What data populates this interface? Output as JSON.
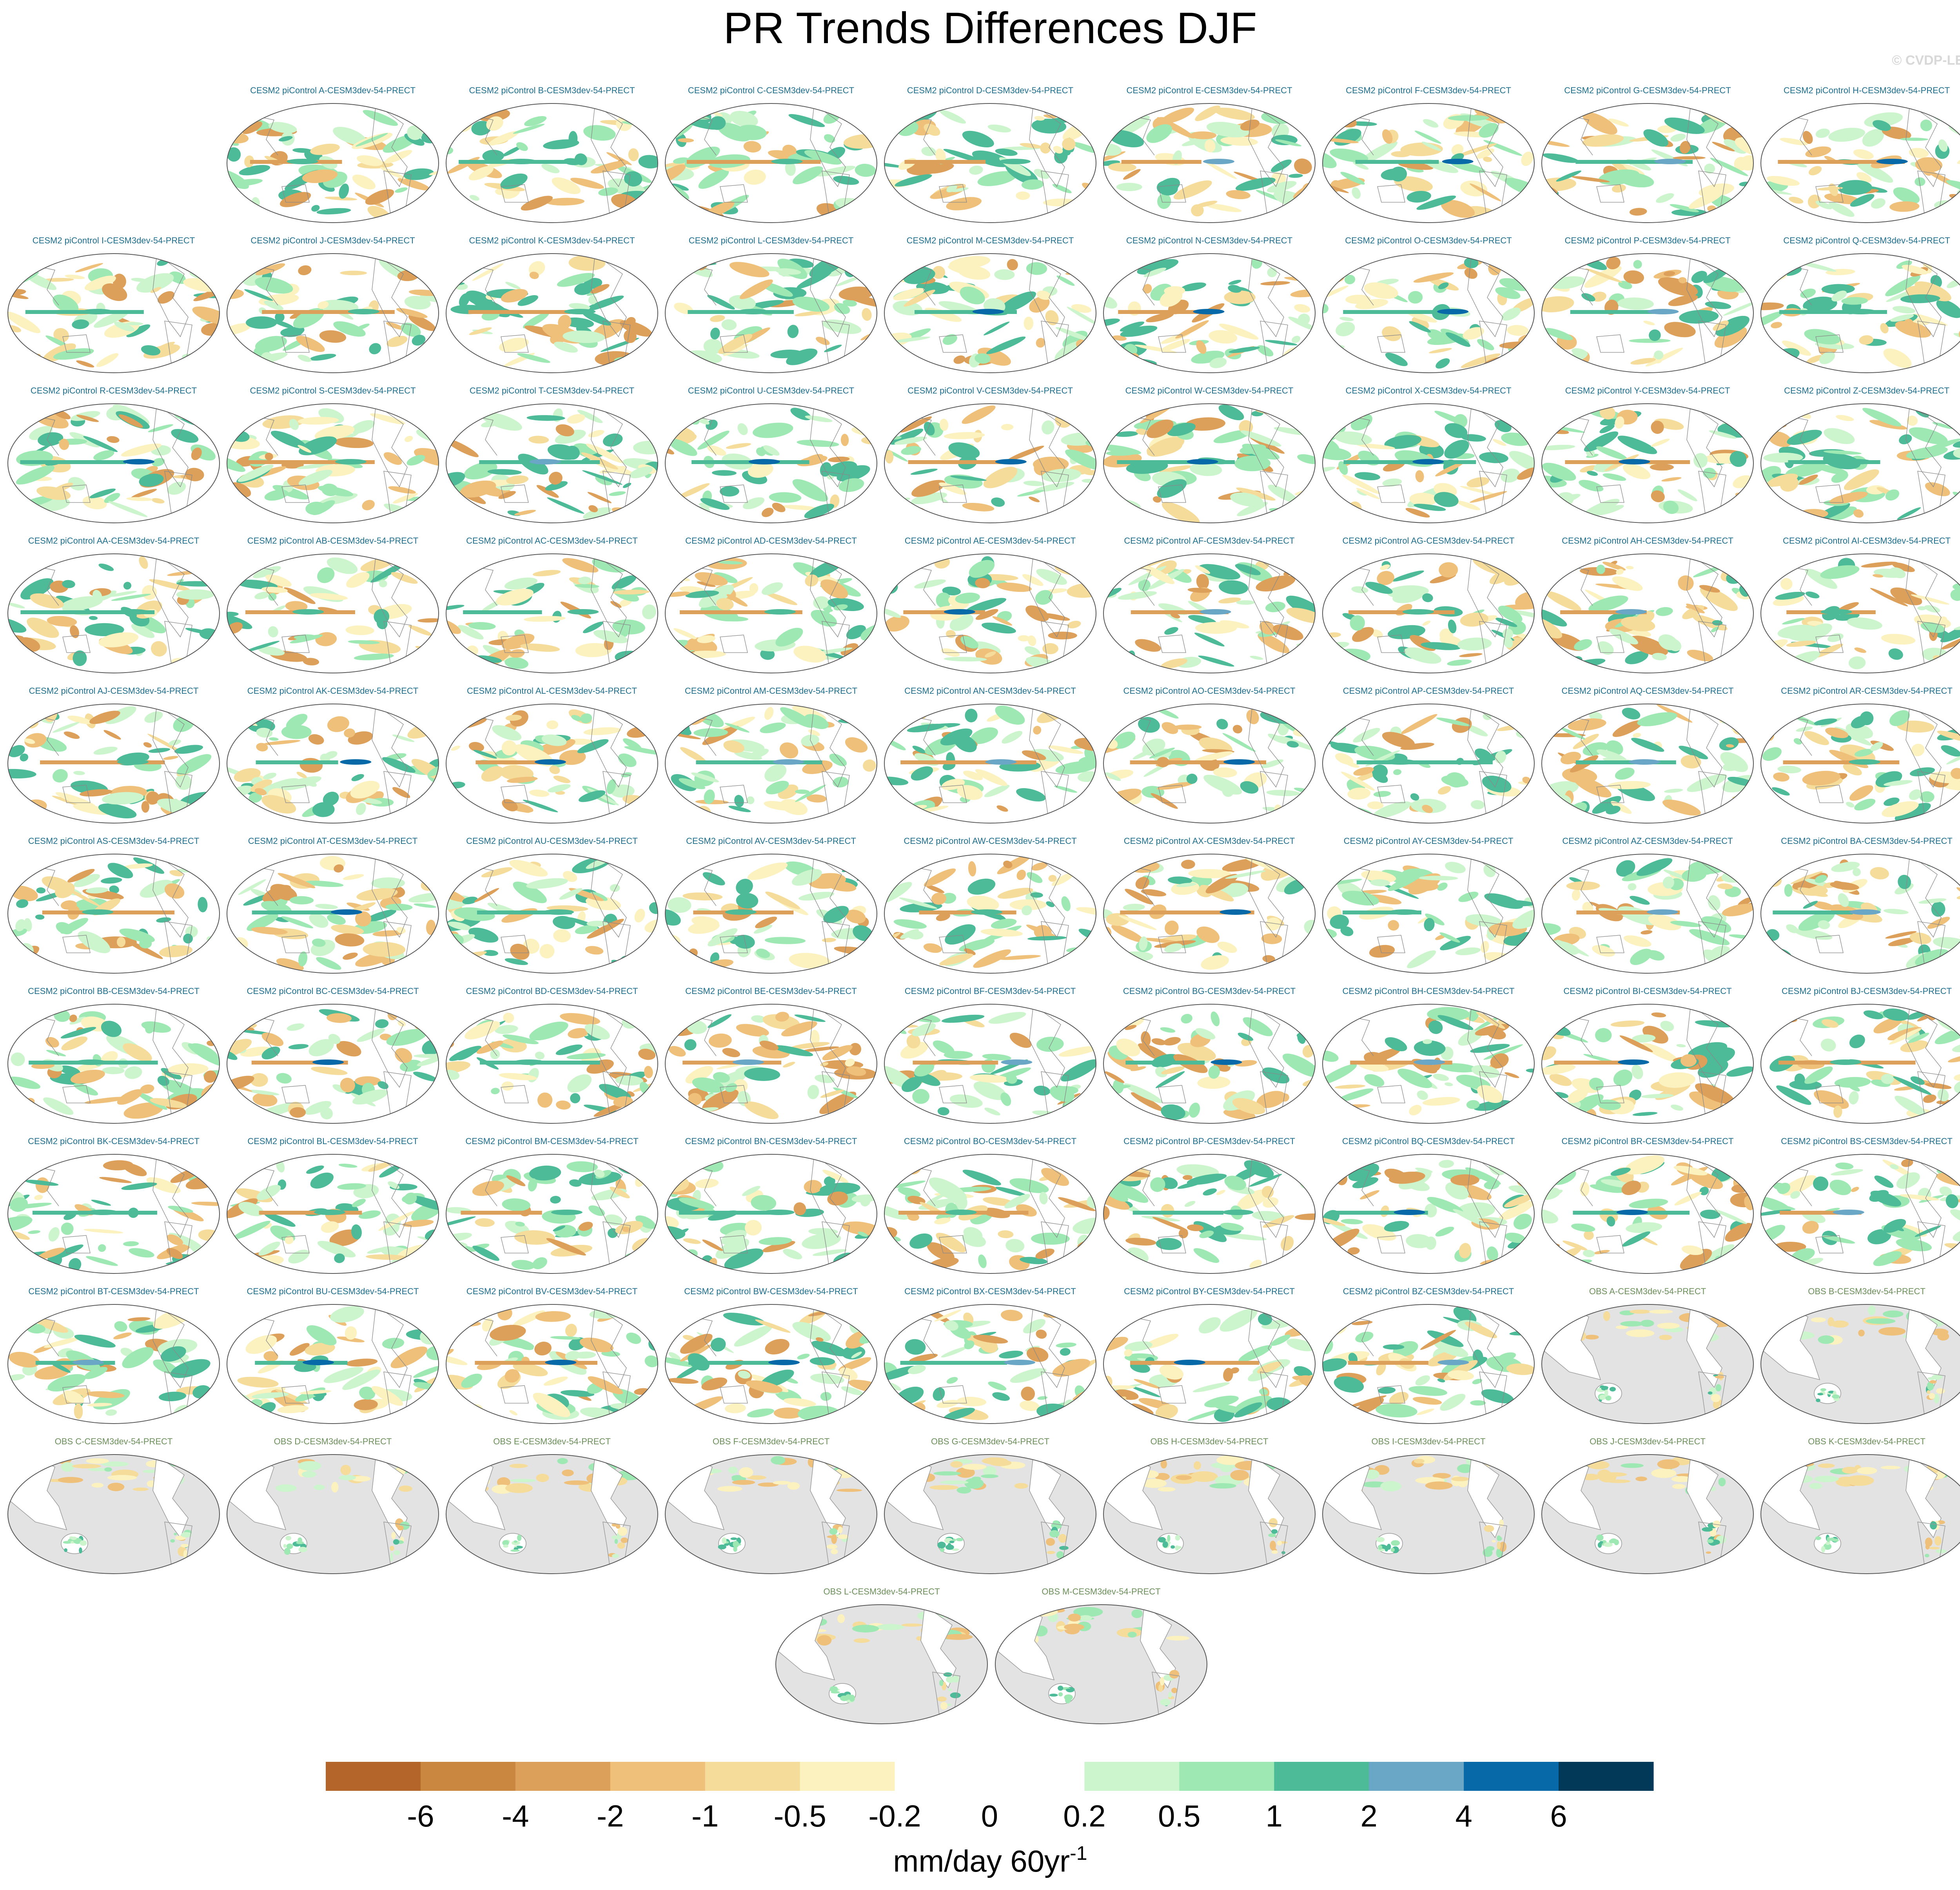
{
  "title": "PR Trends Differences DJF",
  "watermark": "© CVDP-LE",
  "panels": [
    "CESM2 piControl A-CESM3dev-54-PRECT",
    "CESM2 piControl B-CESM3dev-54-PRECT",
    "CESM2 piControl C-CESM3dev-54-PRECT",
    "CESM2 piControl D-CESM3dev-54-PRECT",
    "CESM2 piControl E-CESM3dev-54-PRECT",
    "CESM2 piControl F-CESM3dev-54-PRECT",
    "CESM2 piControl G-CESM3dev-54-PRECT",
    "CESM2 piControl H-CESM3dev-54-PRECT",
    "CESM2 piControl I-CESM3dev-54-PRECT",
    "CESM2 piControl J-CESM3dev-54-PRECT",
    "CESM2 piControl K-CESM3dev-54-PRECT",
    "CESM2 piControl L-CESM3dev-54-PRECT",
    "CESM2 piControl M-CESM3dev-54-PRECT",
    "CESM2 piControl N-CESM3dev-54-PRECT",
    "CESM2 piControl O-CESM3dev-54-PRECT",
    "CESM2 piControl P-CESM3dev-54-PRECT",
    "CESM2 piControl Q-CESM3dev-54-PRECT",
    "CESM2 piControl R-CESM3dev-54-PRECT",
    "CESM2 piControl S-CESM3dev-54-PRECT",
    "CESM2 piControl T-CESM3dev-54-PRECT",
    "CESM2 piControl U-CESM3dev-54-PRECT",
    "CESM2 piControl V-CESM3dev-54-PRECT",
    "CESM2 piControl W-CESM3dev-54-PRECT",
    "CESM2 piControl X-CESM3dev-54-PRECT",
    "CESM2 piControl Y-CESM3dev-54-PRECT",
    "CESM2 piControl Z-CESM3dev-54-PRECT",
    "CESM2 piControl AA-CESM3dev-54-PRECT",
    "CESM2 piControl AB-CESM3dev-54-PRECT",
    "CESM2 piControl AC-CESM3dev-54-PRECT",
    "CESM2 piControl AD-CESM3dev-54-PRECT",
    "CESM2 piControl AE-CESM3dev-54-PRECT",
    "CESM2 piControl AF-CESM3dev-54-PRECT",
    "CESM2 piControl AG-CESM3dev-54-PRECT",
    "CESM2 piControl AH-CESM3dev-54-PRECT",
    "CESM2 piControl AI-CESM3dev-54-PRECT",
    "CESM2 piControl AJ-CESM3dev-54-PRECT",
    "CESM2 piControl AK-CESM3dev-54-PRECT",
    "CESM2 piControl AL-CESM3dev-54-PRECT",
    "CESM2 piControl AM-CESM3dev-54-PRECT",
    "CESM2 piControl AN-CESM3dev-54-PRECT",
    "CESM2 piControl AO-CESM3dev-54-PRECT",
    "CESM2 piControl AP-CESM3dev-54-PRECT",
    "CESM2 piControl AQ-CESM3dev-54-PRECT",
    "CESM2 piControl AR-CESM3dev-54-PRECT",
    "CESM2 piControl AS-CESM3dev-54-PRECT",
    "CESM2 piControl AT-CESM3dev-54-PRECT",
    "CESM2 piControl AU-CESM3dev-54-PRECT",
    "CESM2 piControl AV-CESM3dev-54-PRECT",
    "CESM2 piControl AW-CESM3dev-54-PRECT",
    "CESM2 piControl AX-CESM3dev-54-PRECT",
    "CESM2 piControl AY-CESM3dev-54-PRECT",
    "CESM2 piControl AZ-CESM3dev-54-PRECT",
    "CESM2 piControl BA-CESM3dev-54-PRECT",
    "CESM2 piControl BB-CESM3dev-54-PRECT",
    "CESM2 piControl BC-CESM3dev-54-PRECT",
    "CESM2 piControl BD-CESM3dev-54-PRECT",
    "CESM2 piControl BE-CESM3dev-54-PRECT",
    "CESM2 piControl BF-CESM3dev-54-PRECT",
    "CESM2 piControl BG-CESM3dev-54-PRECT",
    "CESM2 piControl BH-CESM3dev-54-PRECT",
    "CESM2 piControl BI-CESM3dev-54-PRECT",
    "CESM2 piControl BJ-CESM3dev-54-PRECT",
    "CESM2 piControl BK-CESM3dev-54-PRECT",
    "CESM2 piControl BL-CESM3dev-54-PRECT",
    "CESM2 piControl BM-CESM3dev-54-PRECT",
    "CESM2 piControl BN-CESM3dev-54-PRECT",
    "CESM2 piControl BO-CESM3dev-54-PRECT",
    "CESM2 piControl BP-CESM3dev-54-PRECT",
    "CESM2 piControl BQ-CESM3dev-54-PRECT",
    "CESM2 piControl BR-CESM3dev-54-PRECT",
    "CESM2 piControl BS-CESM3dev-54-PRECT",
    "CESM2 piControl BT-CESM3dev-54-PRECT",
    "CESM2 piControl BU-CESM3dev-54-PRECT",
    "CESM2 piControl BV-CESM3dev-54-PRECT",
    "CESM2 piControl BW-CESM3dev-54-PRECT",
    "CESM2 piControl BX-CESM3dev-54-PRECT",
    "CESM2 piControl BY-CESM3dev-54-PRECT",
    "CESM2 piControl BZ-CESM3dev-54-PRECT",
    "OBS A-CESM3dev-54-PRECT",
    "OBS B-CESM3dev-54-PRECT",
    "OBS C-CESM3dev-54-PRECT",
    "OBS D-CESM3dev-54-PRECT",
    "OBS E-CESM3dev-54-PRECT",
    "OBS F-CESM3dev-54-PRECT",
    "OBS G-CESM3dev-54-PRECT",
    "OBS H-CESM3dev-54-PRECT",
    "OBS I-CESM3dev-54-PRECT",
    "OBS J-CESM3dev-54-PRECT",
    "OBS K-CESM3dev-54-PRECT",
    "OBS L-CESM3dev-54-PRECT",
    "OBS M-CESM3dev-54-PRECT"
  ],
  "colorbar": {
    "colors": [
      "#b4662a",
      "#c98740",
      "#dca05a",
      "#efc07a",
      "#f5dc9a",
      "#fbf2bf",
      "#ffffff",
      "#ffffff",
      "#cdf5cd",
      "#9de8b3",
      "#4dbb98",
      "#6aa6c6",
      "#0769a8",
      "#023858"
    ],
    "labels": [
      "-6",
      "-4",
      "-2",
      "-1",
      "-0.5",
      "-0.2",
      "0",
      "0.2",
      "0.5",
      "1",
      "2",
      "4",
      "6"
    ],
    "units": "mm/day 60yr",
    "units_exponent": "-1"
  }
}
